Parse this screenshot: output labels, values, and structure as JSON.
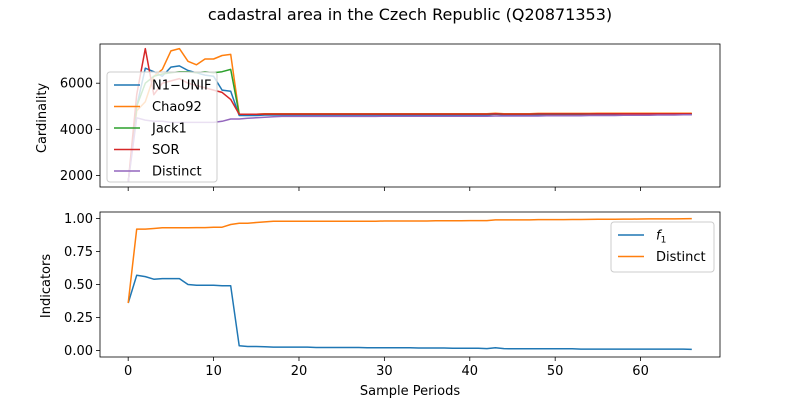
{
  "figure": {
    "title": "cadastral area in the Czech Republic (Q20871353)"
  },
  "chart_data": [
    {
      "type": "line",
      "ylabel": "Cardinality",
      "xlabel": "",
      "xlim": [
        -3.3,
        69.3
      ],
      "ylim": [
        1500,
        7700
      ],
      "yticks": [
        2000,
        4000,
        6000
      ],
      "legend_position": "upper-left",
      "x": [
        0,
        1,
        2,
        3,
        4,
        5,
        6,
        7,
        8,
        9,
        10,
        11,
        12,
        13,
        14,
        15,
        16,
        17,
        18,
        19,
        20,
        21,
        22,
        23,
        24,
        25,
        26,
        27,
        28,
        29,
        30,
        31,
        32,
        33,
        34,
        35,
        36,
        37,
        38,
        39,
        40,
        41,
        42,
        43,
        44,
        45,
        46,
        47,
        48,
        49,
        50,
        51,
        52,
        53,
        54,
        55,
        56,
        57,
        58,
        59,
        60,
        61,
        62,
        63,
        64,
        65,
        66
      ],
      "series": [
        {
          "name": "N1−UNIF",
          "color": "#1f77b4",
          "values": [
            1700,
            5000,
            6650,
            6500,
            6300,
            6700,
            6750,
            6550,
            6450,
            6350,
            6300,
            5700,
            5650,
            4600,
            4600,
            4600,
            4620,
            4620,
            4620,
            4620,
            4620,
            4620,
            4620,
            4620,
            4620,
            4620,
            4620,
            4620,
            4620,
            4620,
            4620,
            4620,
            4620,
            4620,
            4620,
            4620,
            4620,
            4620,
            4620,
            4620,
            4620,
            4620,
            4620,
            4650,
            4620,
            4620,
            4620,
            4620,
            4630,
            4630,
            4630,
            4630,
            4630,
            4630,
            4630,
            4640,
            4640,
            4640,
            4640,
            4640,
            4640,
            4640,
            4640,
            4640,
            4640,
            4640,
            4640
          ]
        },
        {
          "name": "Chao92",
          "color": "#ff7f0e",
          "values": [
            1700,
            4800,
            5200,
            6300,
            6600,
            7400,
            7500,
            6950,
            6800,
            7050,
            7050,
            7200,
            7250,
            4650,
            4650,
            4650,
            4680,
            4680,
            4680,
            4680,
            4680,
            4680,
            4680,
            4680,
            4680,
            4680,
            4680,
            4680,
            4680,
            4680,
            4680,
            4680,
            4680,
            4680,
            4680,
            4680,
            4680,
            4680,
            4680,
            4680,
            4680,
            4680,
            4680,
            4700,
            4680,
            4680,
            4680,
            4680,
            4690,
            4690,
            4690,
            4690,
            4690,
            4690,
            4690,
            4700,
            4700,
            4700,
            4700,
            4700,
            4700,
            4700,
            4700,
            4700,
            4700,
            4700,
            4700
          ]
        },
        {
          "name": "Jack1",
          "color": "#2ca02c",
          "values": [
            1700,
            5000,
            6000,
            6300,
            6400,
            6450,
            6500,
            6500,
            6450,
            6500,
            6450,
            6500,
            6600,
            4650,
            4650,
            4650,
            4660,
            4660,
            4660,
            4660,
            4660,
            4660,
            4660,
            4660,
            4660,
            4660,
            4660,
            4660,
            4660,
            4660,
            4660,
            4660,
            4660,
            4660,
            4660,
            4660,
            4660,
            4660,
            4660,
            4660,
            4660,
            4660,
            4660,
            4680,
            4660,
            4660,
            4660,
            4660,
            4670,
            4670,
            4670,
            4670,
            4670,
            4670,
            4670,
            4680,
            4680,
            4680,
            4680,
            4680,
            4680,
            4680,
            4680,
            4680,
            4680,
            4680,
            4680
          ]
        },
        {
          "name": "SOR",
          "color": "#d62728",
          "values": [
            1700,
            5500,
            7500,
            5500,
            6000,
            6100,
            6200,
            6000,
            5900,
            5800,
            5700,
            5600,
            5300,
            4650,
            4650,
            4650,
            4660,
            4660,
            4660,
            4660,
            4660,
            4660,
            4660,
            4660,
            4660,
            4660,
            4660,
            4660,
            4660,
            4660,
            4660,
            4660,
            4660,
            4660,
            4660,
            4660,
            4660,
            4660,
            4660,
            4660,
            4660,
            4660,
            4660,
            4680,
            4660,
            4660,
            4660,
            4660,
            4670,
            4670,
            4670,
            4670,
            4670,
            4670,
            4670,
            4680,
            4680,
            4680,
            4680,
            4680,
            4680,
            4680,
            4680,
            4680,
            4680,
            4680,
            4680
          ]
        },
        {
          "name": "Distinct",
          "color": "#9467bd",
          "values": [
            1700,
            4500,
            4400,
            4350,
            4350,
            4300,
            4300,
            4300,
            4300,
            4300,
            4300,
            4350,
            4450,
            4450,
            4480,
            4500,
            4520,
            4550,
            4560,
            4560,
            4560,
            4560,
            4560,
            4560,
            4560,
            4560,
            4560,
            4560,
            4560,
            4560,
            4570,
            4570,
            4570,
            4570,
            4570,
            4570,
            4570,
            4570,
            4570,
            4570,
            4570,
            4570,
            4570,
            4580,
            4580,
            4580,
            4580,
            4580,
            4580,
            4590,
            4590,
            4590,
            4590,
            4590,
            4600,
            4600,
            4600,
            4600,
            4610,
            4610,
            4610,
            4610,
            4620,
            4620,
            4620,
            4630,
            4630
          ]
        }
      ]
    },
    {
      "type": "line",
      "ylabel": "Indicators",
      "xlabel": "Sample Periods",
      "xlim": [
        -3.3,
        69.3
      ],
      "ylim": [
        -0.05,
        1.05
      ],
      "yticks": [
        0.0,
        0.25,
        0.5,
        0.75,
        1.0
      ],
      "ytick_labels": [
        "0.00",
        "0.25",
        "0.50",
        "0.75",
        "1.00"
      ],
      "xticks": [
        0,
        10,
        20,
        30,
        40,
        50,
        60
      ],
      "legend_position": "upper-right",
      "x": [
        0,
        1,
        2,
        3,
        4,
        5,
        6,
        7,
        8,
        9,
        10,
        11,
        12,
        13,
        14,
        15,
        16,
        17,
        18,
        19,
        20,
        21,
        22,
        23,
        24,
        25,
        26,
        27,
        28,
        29,
        30,
        31,
        32,
        33,
        34,
        35,
        36,
        37,
        38,
        39,
        40,
        41,
        42,
        43,
        44,
        45,
        46,
        47,
        48,
        49,
        50,
        51,
        52,
        53,
        54,
        55,
        56,
        57,
        58,
        59,
        60,
        61,
        62,
        63,
        64,
        65,
        66
      ],
      "series": [
        {
          "name": "f1",
          "color": "#1f77b4",
          "values": [
            0.36,
            0.57,
            0.56,
            0.54,
            0.545,
            0.545,
            0.545,
            0.5,
            0.495,
            0.495,
            0.495,
            0.49,
            0.49,
            0.035,
            0.03,
            0.03,
            0.028,
            0.025,
            0.025,
            0.025,
            0.025,
            0.025,
            0.022,
            0.022,
            0.022,
            0.022,
            0.022,
            0.022,
            0.02,
            0.02,
            0.02,
            0.02,
            0.02,
            0.02,
            0.018,
            0.018,
            0.018,
            0.018,
            0.016,
            0.016,
            0.016,
            0.016,
            0.014,
            0.02,
            0.014,
            0.012,
            0.012,
            0.012,
            0.012,
            0.012,
            0.012,
            0.012,
            0.012,
            0.01,
            0.01,
            0.01,
            0.01,
            0.01,
            0.01,
            0.01,
            0.01,
            0.01,
            0.01,
            0.01,
            0.01,
            0.01,
            0.008
          ]
        },
        {
          "name": "Distinct",
          "color": "#ff7f0e",
          "values": [
            0.36,
            0.92,
            0.92,
            0.925,
            0.93,
            0.93,
            0.93,
            0.93,
            0.932,
            0.932,
            0.935,
            0.935,
            0.955,
            0.965,
            0.965,
            0.97,
            0.975,
            0.98,
            0.98,
            0.98,
            0.98,
            0.98,
            0.98,
            0.98,
            0.98,
            0.98,
            0.98,
            0.98,
            0.98,
            0.98,
            0.982,
            0.982,
            0.982,
            0.982,
            0.982,
            0.982,
            0.984,
            0.984,
            0.984,
            0.984,
            0.985,
            0.985,
            0.985,
            0.99,
            0.99,
            0.99,
            0.99,
            0.99,
            0.992,
            0.992,
            0.992,
            0.992,
            0.993,
            0.993,
            0.994,
            0.995,
            0.995,
            0.995,
            0.996,
            0.996,
            0.997,
            0.998,
            0.998,
            0.998,
            0.998,
            0.999,
            1.0
          ]
        }
      ]
    }
  ]
}
